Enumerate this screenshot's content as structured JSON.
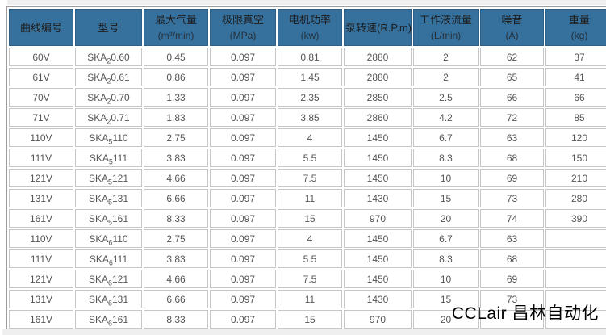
{
  "page": {
    "watermark": "CCLair 昌林自动化"
  },
  "colors": {
    "header_bg": "#36719e",
    "header_border": "#2c5f88",
    "cell_border": "#c6c6c6",
    "table_border": "#9c9c9c",
    "strip_bg": "#f0eff0",
    "data_text": "#555555",
    "header_text": "#1c1c1c"
  },
  "table": {
    "headers": [
      {
        "line1": "曲线编号",
        "line2": ""
      },
      {
        "line1": "型号",
        "line2": ""
      },
      {
        "line1": "最大气量",
        "line2": "(m³/min)"
      },
      {
        "line1": "极限真空",
        "line2": "(MPa)"
      },
      {
        "line1": "电机功率",
        "line2": "(kw)"
      },
      {
        "line1": "泵转速(R.P.m)",
        "line2": ""
      },
      {
        "line1": "工作液流量",
        "line2": "(L/min)"
      },
      {
        "line1": "噪音",
        "line2": "(A)"
      },
      {
        "line1": "重量",
        "line2": "(kg)"
      }
    ],
    "rows": [
      {
        "curve": "60V",
        "model": {
          "base": "SKA",
          "sub": "2",
          "rest": "0.60"
        },
        "max_air": "0.45",
        "vacuum": "0.097",
        "power": "0.81",
        "speed": "2880",
        "flow": "2",
        "noise": "62",
        "weight": "37"
      },
      {
        "curve": "61V",
        "model": {
          "base": "SKA",
          "sub": "2",
          "rest": "0.61"
        },
        "max_air": "0.86",
        "vacuum": "0.097",
        "power": "1.45",
        "speed": "2880",
        "flow": "2",
        "noise": "65",
        "weight": "41"
      },
      {
        "curve": "70V",
        "model": {
          "base": "SKA",
          "sub": "2",
          "rest": "0.70"
        },
        "max_air": "1.33",
        "vacuum": "0.097",
        "power": "2.35",
        "speed": "2850",
        "flow": "2.5",
        "noise": "66",
        "weight": "66"
      },
      {
        "curve": "71V",
        "model": {
          "base": "SKA",
          "sub": "2",
          "rest": "0.71"
        },
        "max_air": "1.83",
        "vacuum": "0.097",
        "power": "3.85",
        "speed": "2860",
        "flow": "4.2",
        "noise": "72",
        "weight": "85"
      },
      {
        "curve": "110V",
        "model": {
          "base": "SKA",
          "sub": "5",
          "rest": "110"
        },
        "max_air": "2.75",
        "vacuum": "0.097",
        "power": "4",
        "speed": "1450",
        "flow": "6.7",
        "noise": "63",
        "weight": "120"
      },
      {
        "curve": "111V",
        "model": {
          "base": "SKA",
          "sub": "5",
          "rest": "111"
        },
        "max_air": "3.83",
        "vacuum": "0.097",
        "power": "5.5",
        "speed": "1450",
        "flow": "8.3",
        "noise": "68",
        "weight": "150"
      },
      {
        "curve": "121V",
        "model": {
          "base": "SKA",
          "sub": "5",
          "rest": "121"
        },
        "max_air": "4.66",
        "vacuum": "0.097",
        "power": "7.5",
        "speed": "1450",
        "flow": "10",
        "noise": "69",
        "weight": "210"
      },
      {
        "curve": "131V",
        "model": {
          "base": "SKA",
          "sub": "5",
          "rest": "131"
        },
        "max_air": "6.66",
        "vacuum": "0.097",
        "power": "11",
        "speed": "1430",
        "flow": "15",
        "noise": "73",
        "weight": "280"
      },
      {
        "curve": "161V",
        "model": {
          "base": "SKA",
          "sub": "5",
          "rest": "161"
        },
        "max_air": "8.33",
        "vacuum": "0.097",
        "power": "15",
        "speed": "970",
        "flow": "20",
        "noise": "74",
        "weight": "390"
      },
      {
        "curve": "110V",
        "model": {
          "base": "SKA",
          "sub": "6",
          "rest": "110"
        },
        "max_air": "2.75",
        "vacuum": "0.097",
        "power": "4",
        "speed": "1450",
        "flow": "6.7",
        "noise": "63",
        "weight": ""
      },
      {
        "curve": "111V",
        "model": {
          "base": "SKA",
          "sub": "6",
          "rest": "111"
        },
        "max_air": "3.83",
        "vacuum": "0.097",
        "power": "5.5",
        "speed": "1450",
        "flow": "8.3",
        "noise": "68",
        "weight": ""
      },
      {
        "curve": "121V",
        "model": {
          "base": "SKA",
          "sub": "6",
          "rest": "121"
        },
        "max_air": "4.66",
        "vacuum": "0.097",
        "power": "7.5",
        "speed": "1450",
        "flow": "10",
        "noise": "69",
        "weight": ""
      },
      {
        "curve": "131V",
        "model": {
          "base": "SKA",
          "sub": "6",
          "rest": "131"
        },
        "max_air": "6.66",
        "vacuum": "0.097",
        "power": "11",
        "speed": "1430",
        "flow": "15",
        "noise": "73",
        "weight": ""
      },
      {
        "curve": "161V",
        "model": {
          "base": "SKA",
          "sub": "6",
          "rest": "161"
        },
        "max_air": "8.33",
        "vacuum": "0.097",
        "power": "15",
        "speed": "970",
        "flow": "20",
        "noise": "",
        "weight": ""
      }
    ]
  }
}
